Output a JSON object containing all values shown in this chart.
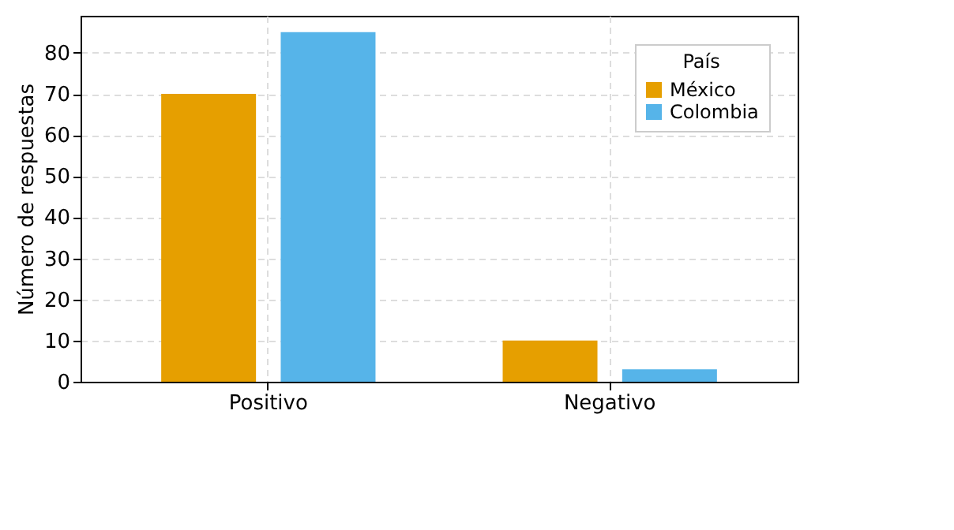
{
  "chart_data": {
    "type": "bar",
    "ylabel": "Número de respuestas",
    "legend_title": "País",
    "categories": [
      "Positivo",
      "Negativo"
    ],
    "series": [
      {
        "name": "México",
        "color": "#e69f00",
        "values": [
          70,
          10
        ]
      },
      {
        "name": "Colombia",
        "color": "#56b4e9",
        "values": [
          85,
          3
        ]
      }
    ],
    "ylim": [
      0,
      89
    ],
    "yticks": [
      0,
      10,
      20,
      30,
      40,
      50,
      60,
      70,
      80
    ],
    "grid": true,
    "legend": "top right"
  }
}
